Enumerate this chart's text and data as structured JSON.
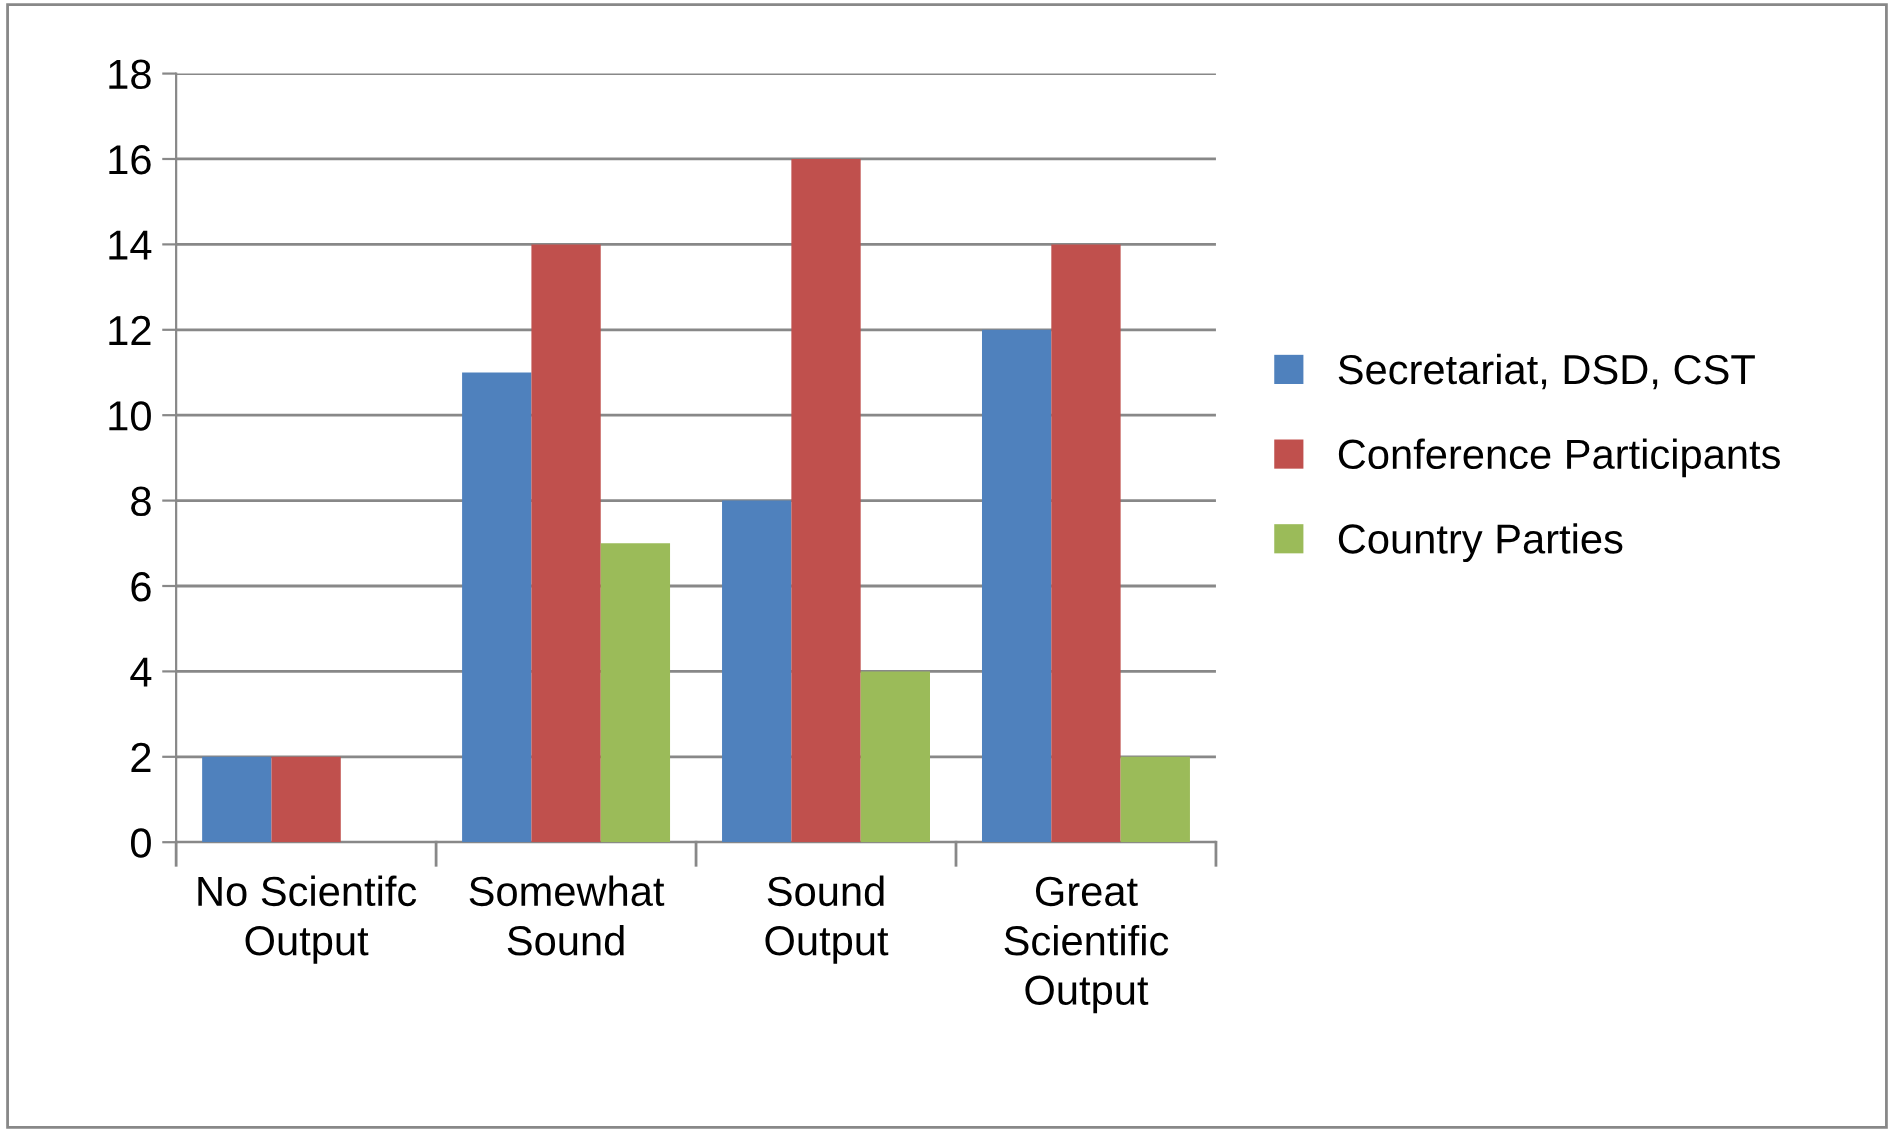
{
  "chart_data": {
    "type": "bar",
    "categories": [
      "No Scientifc\nOutput",
      "Somewhat\nSound",
      "Sound\nOutput",
      "Great\nScientific\nOutput"
    ],
    "series": [
      {
        "name": "Secretariat, DSD, CST",
        "color": "#4f81bd",
        "values": [
          2,
          11,
          8,
          12
        ]
      },
      {
        "name": "Conference Participants",
        "color": "#c0504d",
        "values": [
          2,
          14,
          16,
          14
        ]
      },
      {
        "name": "Country Parties",
        "color": "#9bbb59",
        "values": [
          0,
          7,
          4,
          2
        ]
      }
    ],
    "ylim": [
      0,
      18
    ],
    "yticks": [
      0,
      2,
      4,
      6,
      8,
      10,
      12,
      14,
      16,
      18
    ],
    "grid": "y",
    "legend": "right"
  }
}
